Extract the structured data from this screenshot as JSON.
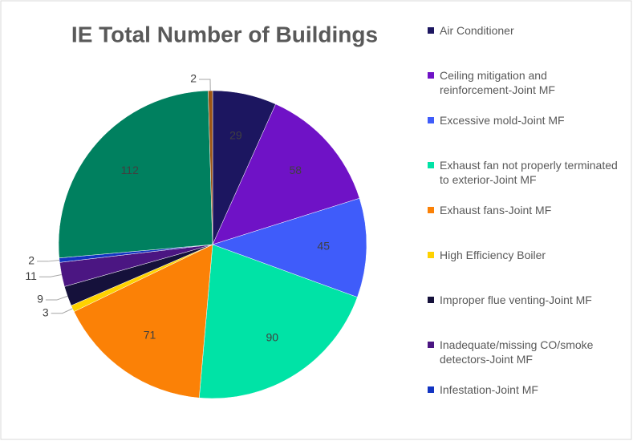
{
  "chart_data": {
    "type": "pie",
    "title": "IE Total Number of Buildings",
    "categories": [
      "Air Conditioner",
      "Ceiling mitigation and reinforcement-Joint MF",
      "Excessive mold-Joint MF",
      "Exhaust fan not properly terminated to exterior-Joint MF",
      "Exhaust fans-Joint MF",
      "High Efficiency Boiler",
      "Improper flue venting-Joint MF",
      "Inadequate/missing CO/smoke detectors-Joint MF",
      "Infestation-Joint MF",
      null,
      null
    ],
    "values": [
      29,
      58,
      45,
      90,
      71,
      3,
      9,
      11,
      2,
      112,
      2
    ],
    "colors": [
      "#1c1660",
      "#6f12c6",
      "#3f5cfa",
      "#00e3a6",
      "#fb8106",
      "#ffd200",
      "#15113b",
      "#4b1682",
      "#1234c2",
      "#00805f",
      "#9c5414"
    ]
  }
}
